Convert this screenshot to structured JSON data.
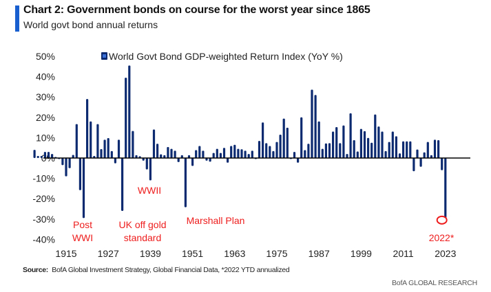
{
  "header": {
    "title": "Chart 2: Government bonds on course for the worst year since 1865",
    "subtitle": "World govt bond annual returns"
  },
  "footer": {
    "source_label": "Source:",
    "source_text": "BofA Global Investment Strategy, Global Financial Data, *2022 YTD annualized",
    "brand": "BofA GLOBAL RESEARCH"
  },
  "colors": {
    "bar": "#0b2a6f",
    "annotation": "#ee1c1c",
    "title_accent": "#1a5fd0",
    "zero_line": "#000000"
  },
  "chart_data": {
    "type": "bar",
    "title": "Chart 2: Government bonds on course for the worst year since 1865",
    "subtitle": "World govt bond annual returns",
    "xlabel": "",
    "ylabel": "",
    "ylim": [
      -40,
      50
    ],
    "yticks": [
      50,
      40,
      30,
      20,
      10,
      0,
      -10,
      -20,
      -30,
      -40
    ],
    "ytick_labels": [
      "50%",
      "40%",
      "30%",
      "20%",
      "10%",
      "0%",
      "-10%",
      "-20%",
      "-30%",
      "-40%"
    ],
    "xticks": [
      1915,
      1927,
      1939,
      1951,
      1963,
      1975,
      1987,
      1999,
      2011,
      2023
    ],
    "xtick_labels": [
      "1915",
      "1927",
      "1939",
      "1951",
      "1963",
      "1975",
      "1987",
      "1999",
      "2011",
      "2023"
    ],
    "grid": false,
    "legend": {
      "placement": "top-center",
      "entries": [
        "World Govt Bond GDP-weighted Return Index (YoY %)"
      ]
    },
    "series": [
      {
        "name": "World Govt Bond GDP-weighted Return Index (YoY %)",
        "start_year": 1906,
        "values": [
          4,
          1,
          1,
          3,
          3,
          2,
          0.5,
          -0.5,
          -3.5,
          -9,
          -5,
          1.5,
          16.7,
          -15.8,
          -29.5,
          29,
          18,
          1,
          16.7,
          4.4,
          9,
          9.8,
          3.4,
          -2.6,
          9,
          -26,
          39.5,
          45.5,
          13.3,
          1.4,
          0.9,
          -1.3,
          -5.6,
          -11,
          14,
          7,
          1.8,
          1.4,
          5.4,
          4.5,
          3.6,
          -2,
          1.4,
          -24.2,
          1.4,
          -3.9,
          3.9,
          5.9,
          3.6,
          -1.3,
          -1.8,
          2.5,
          4.5,
          2.5,
          5,
          -2.3,
          5.9,
          6.5,
          4.5,
          4.3,
          3.6,
          2,
          3.6,
          -0.5,
          8.4,
          17.5,
          7.3,
          5.9,
          3.4,
          7.9,
          11.5,
          19.4,
          14.9,
          -0.5,
          3,
          -2.3,
          20,
          3.9,
          7,
          33.6,
          31,
          18,
          4.5,
          7.2,
          7.3,
          13,
          15.2,
          7.3,
          16,
          2,
          22,
          8.8,
          3.2,
          14.3,
          13.2,
          9.9,
          7.5,
          21.4,
          15.5,
          13,
          3.4,
          7.9,
          13,
          10.7,
          2.3,
          8.2,
          8.2,
          8.2,
          -6.5,
          4.2,
          -4.3,
          2.8,
          7.9,
          1.4,
          9,
          8.8,
          -6,
          -29.5
        ]
      }
    ],
    "annotations": [
      {
        "id": "post-wwi",
        "lines": [
          "Post",
          "WWI"
        ],
        "year": 1920
      },
      {
        "id": "uk-off-gold",
        "lines": [
          "UK off gold",
          "standard"
        ],
        "year": 1931
      },
      {
        "id": "wwii",
        "lines": [
          "WWII"
        ],
        "year": 1939
      },
      {
        "id": "marshall-plan",
        "lines": [
          "Marshall Plan"
        ],
        "year": 1949
      },
      {
        "id": "2022",
        "lines": [
          "2022*"
        ],
        "year": 2022,
        "circled": true
      }
    ]
  }
}
